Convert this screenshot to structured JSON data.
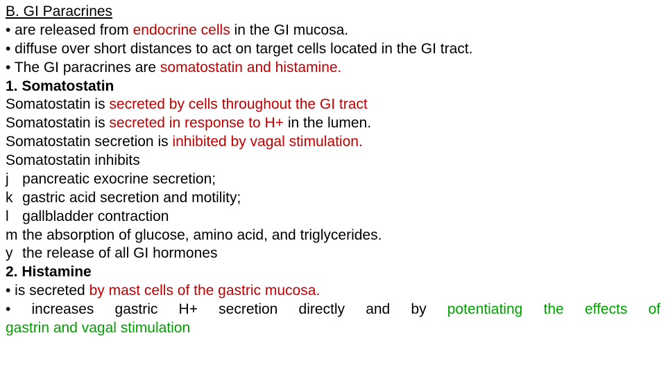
{
  "heading": "B. GI Paracrines",
  "b1_a": "• are released from ",
  "b1_b": "endocrine cells ",
  "b1_c": "in the GI mucosa.",
  "b2": "• diffuse over short distances to act on target cells located in the GI tract.",
  "b3_a": "• The GI paracrines are ",
  "b3_b": "somatostatin and histamine.",
  "s_title": "1. Somatostatin",
  "s1_a": "Somatostatin is ",
  "s1_b": "secreted by cells throughout the GI tract",
  "s2_a": "Somatostatin is ",
  "s2_b": "secreted in response to H+ ",
  "s2_c": "in the lumen.",
  "s3_a": "Somatostatin secretion is ",
  "s3_b": "inhibited by vagal stimulation.",
  "s4": "Somatostatin inhibits",
  "i1_icon": "j",
  "i1": "pancreatic exocrine secretion;",
  "i2_icon": "k",
  "i2": "gastric acid secretion and motility;",
  "i3_icon": "l",
  "i3": "gallbladder contraction",
  "i4_icon": "m",
  "i4": "the absorption of glucose, amino acid, and triglycerides.",
  "i5_icon": "y",
  "i5": "the release of all GI hormones",
  "h_title": "2. Histamine",
  "h1_a": "• is secreted ",
  "h1_b": "by mast cells of the gastric mucosa.",
  "h2_a": "• increases gastric H+ secretion directly and by ",
  "h2_b": "potentiating the effects of",
  "h2_c": "gastrin and vagal stimulation"
}
